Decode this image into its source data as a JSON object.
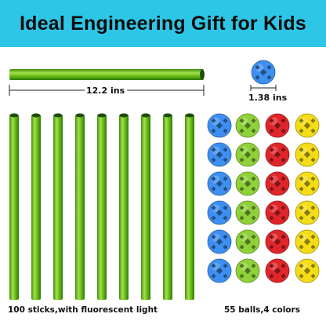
{
  "banner": {
    "title": "Ideal Engineering Gift for Kids",
    "background": "#2ec6e6"
  },
  "stick": {
    "length_label": "12.2 ins",
    "color": "#6fc21c"
  },
  "ball": {
    "diameter_label": "1.38 ins"
  },
  "sticks": {
    "caption": "100 sticks,with fluorescent light"
  },
  "balls": {
    "caption": "55 balls,4 colors",
    "colors": [
      "#3d8ff0",
      "#8fd13a",
      "#e0262b",
      "#f4dc17"
    ]
  }
}
